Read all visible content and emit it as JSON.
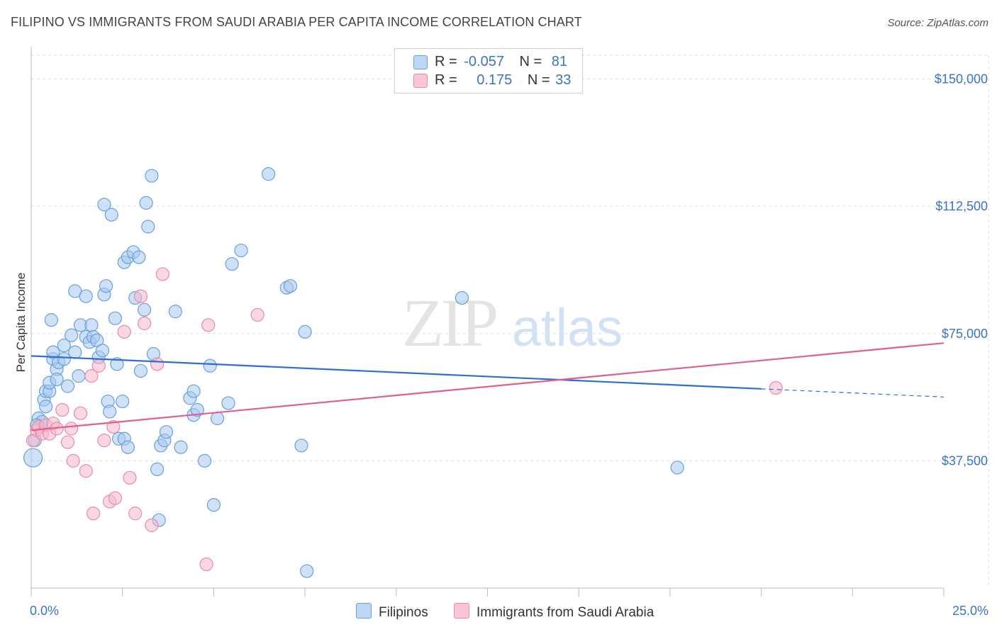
{
  "header": {
    "title": "FILIPINO VS IMMIGRANTS FROM SAUDI ARABIA PER CAPITA INCOME CORRELATION CHART",
    "source": "Source: ZipAtlas.com"
  },
  "watermark": {
    "zip": "ZIP",
    "atlas": "atlas"
  },
  "colors": {
    "blue_fill": "#a8c8f0",
    "blue_stroke": "#6a9fdc",
    "blue_line": "#2d6fcc",
    "pink_fill": "#f6b8cc",
    "pink_stroke": "#e88aa8",
    "pink_line": "#e0608e",
    "axis_text": "#3a74c4",
    "grid": "#dddddd"
  },
  "legend_top": {
    "rows": [
      {
        "r_label": "R =",
        "r_value": "-0.057",
        "n_label": "N =",
        "n_value": "81"
      },
      {
        "r_label": "R =",
        "r_value": "0.175",
        "n_label": "N =",
        "n_value": "33"
      }
    ]
  },
  "legend_bottom": {
    "items": [
      "Filipinos",
      "Immigrants from Saudi Arabia"
    ]
  },
  "chart_data": {
    "type": "scatter",
    "title": "FILIPINO VS IMMIGRANTS FROM SAUDI ARABIA PER CAPITA INCOME CORRELATION CHART",
    "xlabel": "",
    "ylabel": "Per Capita Income",
    "xlim": [
      0,
      25
    ],
    "ylim": [
      0,
      157000
    ],
    "x_tick_labels": [
      "0.0%",
      "25.0%"
    ],
    "y_ticks": [
      37500,
      75000,
      112500,
      150000
    ],
    "y_tick_labels": [
      "$37,500",
      "$75,000",
      "$112,500",
      "$150,000"
    ],
    "grid": true,
    "legend": "bottom",
    "series": [
      {
        "name": "Filipinos",
        "r": -0.057,
        "n": 81,
        "trend": {
          "x0": 0,
          "y0": 68400,
          "x1": 20,
          "y1": 58700,
          "dash_to_x": 25,
          "dash_to_y": 56300
        },
        "points": [
          [
            0.05,
            38400
          ],
          [
            0.1,
            43500
          ],
          [
            0.2,
            50000
          ],
          [
            0.3,
            49000
          ],
          [
            0.35,
            55500
          ],
          [
            0.4,
            53500
          ],
          [
            0.4,
            58000
          ],
          [
            0.5,
            58000
          ],
          [
            0.5,
            60500
          ],
          [
            0.6,
            67500
          ],
          [
            0.55,
            79000
          ],
          [
            0.6,
            69500
          ],
          [
            0.7,
            64500
          ],
          [
            0.7,
            61500
          ],
          [
            0.75,
            66500
          ],
          [
            0.9,
            67500
          ],
          [
            0.9,
            71500
          ],
          [
            1.0,
            59500
          ],
          [
            1.1,
            74500
          ],
          [
            1.2,
            69500
          ],
          [
            1.2,
            87500
          ],
          [
            1.3,
            62500
          ],
          [
            1.35,
            77500
          ],
          [
            1.5,
            74000
          ],
          [
            1.5,
            86000
          ],
          [
            1.6,
            72500
          ],
          [
            1.65,
            77500
          ],
          [
            1.7,
            74000
          ],
          [
            1.8,
            73000
          ],
          [
            1.85,
            68000
          ],
          [
            1.95,
            70000
          ],
          [
            2.0,
            86500
          ],
          [
            2.05,
            89000
          ],
          [
            2.1,
            55000
          ],
          [
            2.15,
            52000
          ],
          [
            2.3,
            79500
          ],
          [
            2.35,
            66000
          ],
          [
            2.4,
            44000
          ],
          [
            2.5,
            55000
          ],
          [
            2.55,
            44000
          ],
          [
            2.65,
            41500
          ],
          [
            2.0,
            113000
          ],
          [
            2.2,
            110000
          ],
          [
            2.55,
            96000
          ],
          [
            2.65,
            97500
          ],
          [
            2.8,
            99000
          ],
          [
            2.85,
            85500
          ],
          [
            2.95,
            97500
          ],
          [
            3.0,
            64000
          ],
          [
            3.1,
            82000
          ],
          [
            3.2,
            106500
          ],
          [
            3.15,
            113500
          ],
          [
            3.3,
            121500
          ],
          [
            3.35,
            69000
          ],
          [
            3.45,
            35000
          ],
          [
            3.5,
            20000
          ],
          [
            3.55,
            42000
          ],
          [
            3.65,
            43500
          ],
          [
            3.7,
            46000
          ],
          [
            3.95,
            81500
          ],
          [
            4.1,
            41500
          ],
          [
            4.35,
            56000
          ],
          [
            4.45,
            58000
          ],
          [
            4.45,
            51000
          ],
          [
            4.55,
            52500
          ],
          [
            4.75,
            37500
          ],
          [
            4.9,
            65500
          ],
          [
            5.0,
            24500
          ],
          [
            5.1,
            50000
          ],
          [
            5.4,
            54500
          ],
          [
            5.5,
            95500
          ],
          [
            5.75,
            99500
          ],
          [
            6.5,
            122000
          ],
          [
            7.0,
            88500
          ],
          [
            7.1,
            89000
          ],
          [
            7.4,
            42000
          ],
          [
            7.5,
            75500
          ],
          [
            7.55,
            5000
          ],
          [
            11.8,
            85500
          ],
          [
            17.7,
            35500
          ],
          [
            0.15,
            48000
          ]
        ]
      },
      {
        "name": "Immigrants from Saudi Arabia",
        "r": 0.175,
        "n": 33,
        "trend": {
          "x0": 0,
          "y0": 46500,
          "x1": 25,
          "y1": 72200
        },
        "points": [
          [
            0.05,
            43500
          ],
          [
            0.15,
            46500
          ],
          [
            0.2,
            47500
          ],
          [
            0.3,
            45500
          ],
          [
            0.4,
            48000
          ],
          [
            0.5,
            45500
          ],
          [
            0.6,
            48500
          ],
          [
            0.7,
            47000
          ],
          [
            0.85,
            52500
          ],
          [
            1.0,
            43000
          ],
          [
            1.1,
            47000
          ],
          [
            1.15,
            37500
          ],
          [
            1.35,
            51500
          ],
          [
            1.5,
            34500
          ],
          [
            1.65,
            62500
          ],
          [
            1.7,
            22000
          ],
          [
            1.85,
            65500
          ],
          [
            2.0,
            43500
          ],
          [
            2.15,
            25500
          ],
          [
            2.25,
            47500
          ],
          [
            2.3,
            26500
          ],
          [
            2.55,
            75500
          ],
          [
            2.7,
            32500
          ],
          [
            2.85,
            22000
          ],
          [
            3.0,
            86000
          ],
          [
            3.1,
            78000
          ],
          [
            3.3,
            18500
          ],
          [
            3.45,
            66000
          ],
          [
            3.6,
            92500
          ],
          [
            4.85,
            77500
          ],
          [
            4.8,
            7000
          ],
          [
            6.2,
            80500
          ],
          [
            20.4,
            59000
          ]
        ]
      }
    ]
  }
}
